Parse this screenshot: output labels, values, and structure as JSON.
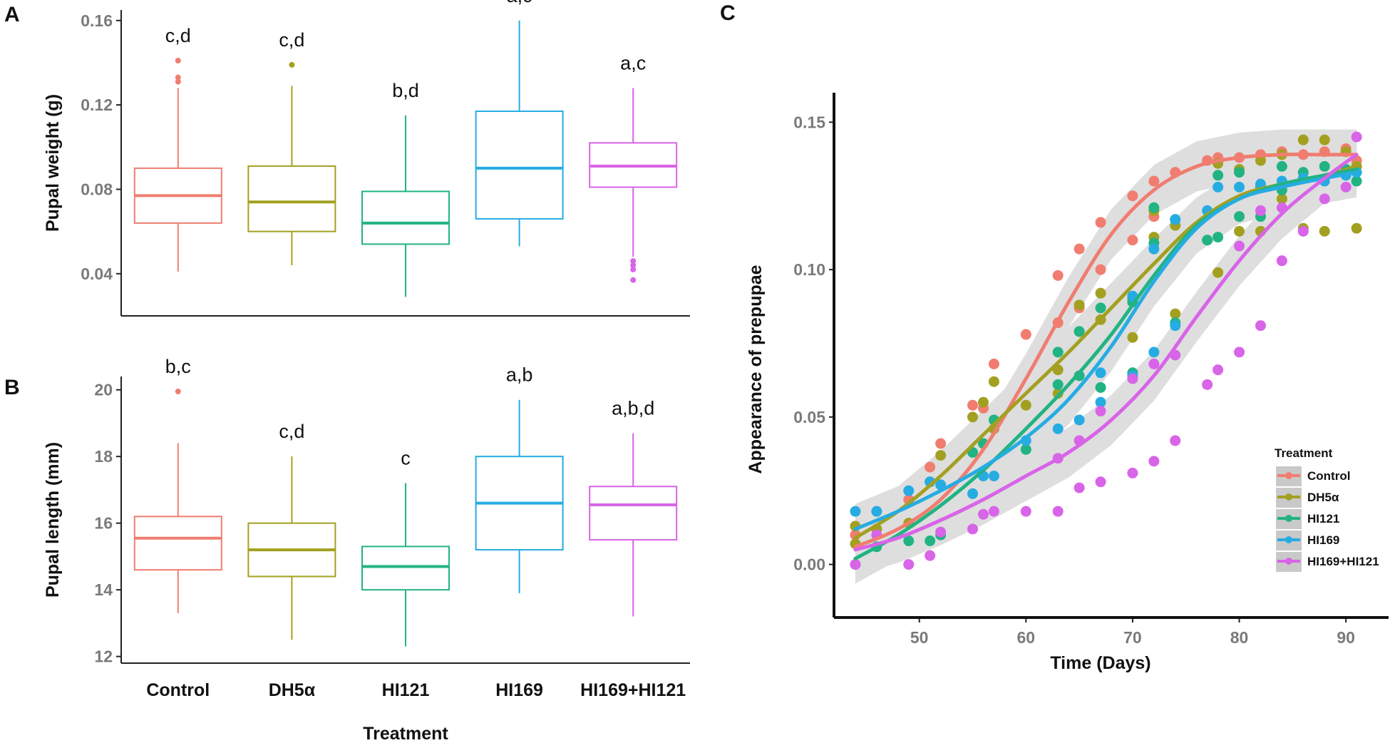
{
  "chart_data": [
    {
      "type": "box",
      "panel_label": "A",
      "ylabel": "Pupal weight (g)",
      "ylim": [
        0.02,
        0.165
      ],
      "yticks": [
        "0.04",
        "0.08",
        "0.12",
        "0.16"
      ],
      "categories": [
        "Control",
        "DH5α",
        "HI121",
        "HI169",
        "HI169+HI121"
      ],
      "colors": [
        "#f07d70",
        "#a3a021",
        "#22b383",
        "#26ace2",
        "#d864e8"
      ],
      "boxes": [
        {
          "min": 0.041,
          "q1": 0.064,
          "median": 0.077,
          "q3": 0.09,
          "max": 0.128,
          "outliers": [
            0.131,
            0.133,
            0.141
          ],
          "letters": "c,d"
        },
        {
          "min": 0.044,
          "q1": 0.06,
          "median": 0.074,
          "q3": 0.091,
          "max": 0.129,
          "outliers": [
            0.139
          ],
          "letters": "c,d"
        },
        {
          "min": 0.029,
          "q1": 0.054,
          "median": 0.064,
          "q3": 0.079,
          "max": 0.115,
          "outliers": [],
          "letters": "b,d"
        },
        {
          "min": 0.053,
          "q1": 0.066,
          "median": 0.09,
          "q3": 0.117,
          "max": 0.16,
          "outliers": [],
          "letters": "a,c"
        },
        {
          "min": 0.048,
          "q1": 0.081,
          "median": 0.091,
          "q3": 0.102,
          "max": 0.128,
          "outliers": [
            0.037,
            0.042,
            0.044,
            0.046
          ],
          "letters": "a,c"
        }
      ]
    },
    {
      "type": "box",
      "panel_label": "B",
      "ylabel": "Pupal length (mm)",
      "ylim": [
        11.8,
        20.4
      ],
      "yticks": [
        "12",
        "14",
        "16",
        "18",
        "20"
      ],
      "xlabel": "Treatment",
      "categories": [
        "Control",
        "DH5α",
        "HI121",
        "HI169",
        "HI169+HI121"
      ],
      "colors": [
        "#f07d70",
        "#a3a021",
        "#22b383",
        "#26ace2",
        "#d864e8"
      ],
      "boxes": [
        {
          "min": 13.3,
          "q1": 14.6,
          "median": 15.55,
          "q3": 16.2,
          "max": 18.4,
          "outliers": [
            19.95
          ],
          "letters": "b,c"
        },
        {
          "min": 12.5,
          "q1": 14.4,
          "median": 15.2,
          "q3": 16.0,
          "max": 18.0,
          "outliers": [],
          "letters": "c,d"
        },
        {
          "min": 12.3,
          "q1": 14.0,
          "median": 14.7,
          "q3": 15.3,
          "max": 17.2,
          "outliers": [],
          "letters": "c"
        },
        {
          "min": 13.9,
          "q1": 15.2,
          "median": 16.6,
          "q3": 18.0,
          "max": 19.7,
          "outliers": [],
          "letters": "a,b"
        },
        {
          "min": 13.2,
          "q1": 15.5,
          "median": 16.55,
          "q3": 17.1,
          "max": 18.7,
          "outliers": [],
          "letters": "a,b,d"
        }
      ]
    },
    {
      "type": "scatter",
      "panel_label": "C",
      "xlabel": "Time (Days)",
      "ylabel": "Appearance of prepupae",
      "xlim": [
        42,
        94
      ],
      "ylim": [
        -0.018,
        0.16
      ],
      "xticks": [
        "50",
        "60",
        "70",
        "80",
        "90"
      ],
      "yticks": [
        "0.00",
        "0.05",
        "0.10",
        "0.15"
      ],
      "legend_title": "Treatment",
      "legend_position": "bottom-right",
      "series": [
        {
          "name": "Control",
          "color": "#f07d70",
          "points": [
            [
              44,
              0.01
            ],
            [
              46,
              0.018
            ],
            [
              49,
              0.022
            ],
            [
              51,
              0.033
            ],
            [
              52,
              0.041
            ],
            [
              55,
              0.054
            ],
            [
              56,
              0.053
            ],
            [
              57,
              0.068
            ],
            [
              60,
              0.078
            ],
            [
              63,
              0.098
            ],
            [
              63,
              0.082
            ],
            [
              65,
              0.107
            ],
            [
              65,
              0.087
            ],
            [
              67,
              0.116
            ],
            [
              67,
              0.1
            ],
            [
              70,
              0.125
            ],
            [
              70,
              0.11
            ],
            [
              72,
              0.13
            ],
            [
              72,
              0.118
            ],
            [
              74,
              0.133
            ],
            [
              77,
              0.137
            ],
            [
              78,
              0.138
            ],
            [
              80,
              0.138
            ],
            [
              82,
              0.139
            ],
            [
              84,
              0.14
            ],
            [
              86,
              0.139
            ],
            [
              88,
              0.14
            ],
            [
              90,
              0.141
            ],
            [
              91,
              0.137
            ]
          ],
          "curve": [
            [
              44,
              0.006
            ],
            [
              48,
              0.012
            ],
            [
              52,
              0.022
            ],
            [
              56,
              0.039
            ],
            [
              60,
              0.063
            ],
            [
              64,
              0.089
            ],
            [
              68,
              0.112
            ],
            [
              72,
              0.127
            ],
            [
              76,
              0.135
            ],
            [
              80,
              0.138
            ],
            [
              84,
              0.139
            ],
            [
              88,
              0.139
            ],
            [
              91,
              0.139
            ]
          ]
        },
        {
          "name": "DH5α",
          "color": "#a3a021",
          "points": [
            [
              44,
              0.007
            ],
            [
              44,
              0.013
            ],
            [
              46,
              0.012
            ],
            [
              49,
              0.014
            ],
            [
              51,
              0.028
            ],
            [
              52,
              0.037
            ],
            [
              55,
              0.05
            ],
            [
              56,
              0.055
            ],
            [
              57,
              0.062
            ],
            [
              57,
              0.046
            ],
            [
              60,
              0.054
            ],
            [
              63,
              0.066
            ],
            [
              63,
              0.058
            ],
            [
              65,
              0.088
            ],
            [
              65,
              0.079
            ],
            [
              67,
              0.092
            ],
            [
              67,
              0.083
            ],
            [
              70,
              0.077
            ],
            [
              70,
              0.09
            ],
            [
              72,
              0.12
            ],
            [
              72,
              0.111
            ],
            [
              74,
              0.085
            ],
            [
              74,
              0.115
            ],
            [
              77,
              0.11
            ],
            [
              78,
              0.099
            ],
            [
              78,
              0.136
            ],
            [
              80,
              0.134
            ],
            [
              80,
              0.113
            ],
            [
              82,
              0.137
            ],
            [
              82,
              0.113
            ],
            [
              84,
              0.139
            ],
            [
              84,
              0.124
            ],
            [
              86,
              0.144
            ],
            [
              86,
              0.114
            ],
            [
              88,
              0.144
            ],
            [
              88,
              0.113
            ],
            [
              90,
              0.14
            ],
            [
              91,
              0.114
            ],
            [
              91,
              0.135
            ]
          ],
          "curve": [
            [
              44,
              0.009
            ],
            [
              48,
              0.018
            ],
            [
              52,
              0.03
            ],
            [
              56,
              0.044
            ],
            [
              60,
              0.058
            ],
            [
              64,
              0.072
            ],
            [
              68,
              0.087
            ],
            [
              72,
              0.102
            ],
            [
              76,
              0.116
            ],
            [
              80,
              0.125
            ],
            [
              84,
              0.129
            ],
            [
              88,
              0.132
            ],
            [
              91,
              0.135
            ]
          ]
        },
        {
          "name": "HI121",
          "color": "#22b383",
          "points": [
            [
              44,
              0.0
            ],
            [
              46,
              0.006
            ],
            [
              49,
              0.008
            ],
            [
              51,
              0.008
            ],
            [
              52,
              0.01
            ],
            [
              55,
              0.038
            ],
            [
              56,
              0.041
            ],
            [
              57,
              0.049
            ],
            [
              60,
              0.039
            ],
            [
              63,
              0.061
            ],
            [
              63,
              0.072
            ],
            [
              65,
              0.064
            ],
            [
              65,
              0.079
            ],
            [
              67,
              0.06
            ],
            [
              67,
              0.087
            ],
            [
              70,
              0.065
            ],
            [
              70,
              0.089
            ],
            [
              72,
              0.121
            ],
            [
              72,
              0.109
            ],
            [
              74,
              0.082
            ],
            [
              74,
              0.117
            ],
            [
              77,
              0.11
            ],
            [
              78,
              0.132
            ],
            [
              78,
              0.111
            ],
            [
              80,
              0.133
            ],
            [
              80,
              0.118
            ],
            [
              82,
              0.128
            ],
            [
              82,
              0.118
            ],
            [
              84,
              0.135
            ],
            [
              84,
              0.127
            ],
            [
              86,
              0.133
            ],
            [
              88,
              0.135
            ],
            [
              90,
              0.134
            ],
            [
              91,
              0.13
            ]
          ],
          "curve": [
            [
              44,
              0.002
            ],
            [
              48,
              0.01
            ],
            [
              52,
              0.02
            ],
            [
              56,
              0.032
            ],
            [
              60,
              0.046
            ],
            [
              64,
              0.061
            ],
            [
              68,
              0.078
            ],
            [
              72,
              0.098
            ],
            [
              76,
              0.115
            ],
            [
              80,
              0.124
            ],
            [
              84,
              0.129
            ],
            [
              88,
              0.132
            ],
            [
              91,
              0.134
            ]
          ]
        },
        {
          "name": "HI169",
          "color": "#26ace2",
          "points": [
            [
              44,
              0.018
            ],
            [
              46,
              0.018
            ],
            [
              49,
              0.025
            ],
            [
              51,
              0.028
            ],
            [
              52,
              0.027
            ],
            [
              55,
              0.024
            ],
            [
              56,
              0.03
            ],
            [
              57,
              0.03
            ],
            [
              60,
              0.042
            ],
            [
              63,
              0.046
            ],
            [
              65,
              0.049
            ],
            [
              67,
              0.055
            ],
            [
              67,
              0.065
            ],
            [
              70,
              0.091
            ],
            [
              70,
              0.064
            ],
            [
              72,
              0.107
            ],
            [
              72,
              0.072
            ],
            [
              74,
              0.081
            ],
            [
              74,
              0.117
            ],
            [
              77,
              0.12
            ],
            [
              78,
              0.128
            ],
            [
              80,
              0.128
            ],
            [
              82,
              0.129
            ],
            [
              84,
              0.13
            ],
            [
              86,
              0.131
            ],
            [
              88,
              0.13
            ],
            [
              90,
              0.132
            ],
            [
              91,
              0.133
            ]
          ],
          "curve": [
            [
              44,
              0.012
            ],
            [
              48,
              0.018
            ],
            [
              52,
              0.025
            ],
            [
              56,
              0.033
            ],
            [
              60,
              0.043
            ],
            [
              64,
              0.056
            ],
            [
              68,
              0.074
            ],
            [
              72,
              0.096
            ],
            [
              76,
              0.114
            ],
            [
              80,
              0.124
            ],
            [
              84,
              0.128
            ],
            [
              88,
              0.131
            ],
            [
              91,
              0.133
            ]
          ]
        },
        {
          "name": "HI169+HI121",
          "color": "#d864e8",
          "points": [
            [
              44,
              0.0
            ],
            [
              46,
              0.01
            ],
            [
              49,
              0.0
            ],
            [
              51,
              0.003
            ],
            [
              52,
              0.011
            ],
            [
              55,
              0.012
            ],
            [
              56,
              0.017
            ],
            [
              57,
              0.018
            ],
            [
              60,
              0.018
            ],
            [
              63,
              0.036
            ],
            [
              63,
              0.018
            ],
            [
              65,
              0.026
            ],
            [
              65,
              0.042
            ],
            [
              67,
              0.052
            ],
            [
              67,
              0.028
            ],
            [
              70,
              0.063
            ],
            [
              70,
              0.031
            ],
            [
              72,
              0.068
            ],
            [
              72,
              0.035
            ],
            [
              74,
              0.042
            ],
            [
              74,
              0.071
            ],
            [
              77,
              0.061
            ],
            [
              78,
              0.066
            ],
            [
              80,
              0.072
            ],
            [
              80,
              0.108
            ],
            [
              82,
              0.081
            ],
            [
              82,
              0.12
            ],
            [
              84,
              0.103
            ],
            [
              84,
              0.121
            ],
            [
              86,
              0.113
            ],
            [
              88,
              0.124
            ],
            [
              90,
              0.128
            ],
            [
              91,
              0.145
            ]
          ],
          "curve": [
            [
              44,
              0.005
            ],
            [
              48,
              0.009
            ],
            [
              52,
              0.015
            ],
            [
              56,
              0.022
            ],
            [
              60,
              0.03
            ],
            [
              64,
              0.038
            ],
            [
              68,
              0.049
            ],
            [
              72,
              0.064
            ],
            [
              76,
              0.084
            ],
            [
              80,
              0.103
            ],
            [
              84,
              0.119
            ],
            [
              88,
              0.131
            ],
            [
              91,
              0.139
            ]
          ]
        }
      ]
    }
  ]
}
